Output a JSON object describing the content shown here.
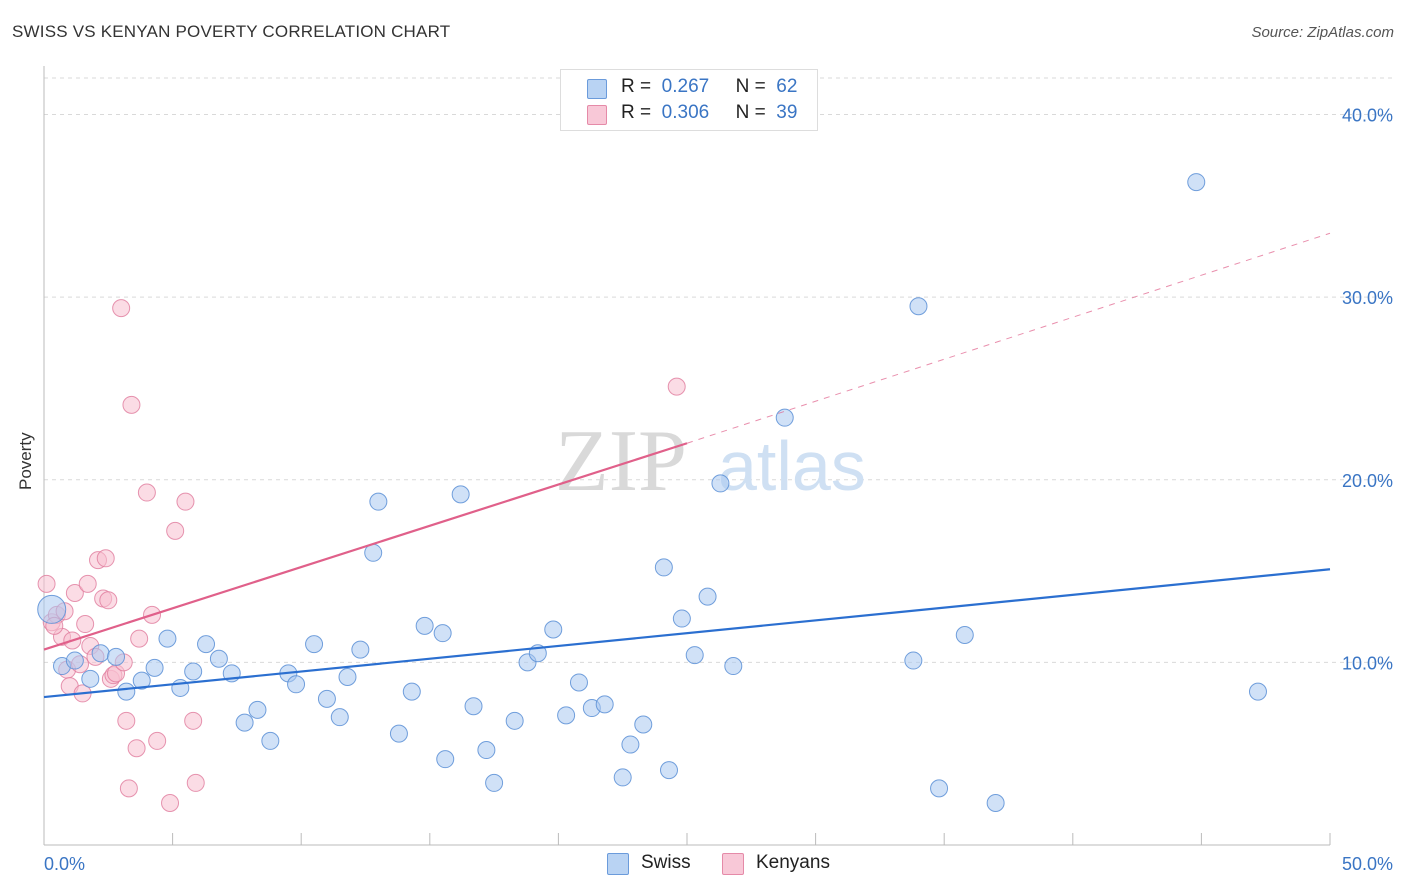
{
  "title": "SWISS VS KENYAN POVERTY CORRELATION CHART",
  "source": "Source: ZipAtlas.com",
  "legend_top": {
    "rows": [
      {
        "r_label": "R =",
        "r_value": "0.267",
        "n_label": "N =",
        "n_value": "62"
      },
      {
        "r_label": "R =",
        "r_value": "0.306",
        "n_label": "N =",
        "n_value": "39"
      }
    ]
  },
  "legend_bottom": {
    "swiss": "Swiss",
    "kenyans": "Kenyans"
  },
  "colors": {
    "swiss_fill": "#a9c8f0",
    "swiss_stroke": "#5b8fd6",
    "swiss_line": "#2b6fd0",
    "kenyan_fill": "#f7bfd0",
    "kenyan_stroke": "#e07a9c",
    "kenyan_line": "#e0608a",
    "tick_text": "#3a75c4",
    "grid": "#d9d9d9"
  },
  "chart_data": {
    "type": "scatter",
    "title": "SWISS VS KENYAN POVERTY CORRELATION CHART",
    "xlabel": "",
    "ylabel": "Poverty",
    "xlim": [
      0,
      50
    ],
    "ylim": [
      0,
      42
    ],
    "x_tick_labels": [
      "0.0%",
      "50.0%"
    ],
    "y_ticks": [
      10,
      20,
      30,
      40
    ],
    "y_tick_labels": [
      "10.0%",
      "20.0%",
      "30.0%",
      "40.0%"
    ],
    "grid": true,
    "legend_position": "top-center",
    "watermark": "ZIPatlas",
    "series": [
      {
        "name": "Swiss",
        "R": 0.267,
        "N": 62,
        "trend": {
          "x": [
            0,
            50
          ],
          "y": [
            8.1,
            15.1
          ],
          "style": "solid"
        },
        "points": [
          [
            0.3,
            12.9
          ],
          [
            0.7,
            9.8
          ],
          [
            1.2,
            10.1
          ],
          [
            1.8,
            9.1
          ],
          [
            2.2,
            10.5
          ],
          [
            2.8,
            10.3
          ],
          [
            3.2,
            8.4
          ],
          [
            3.8,
            9.0
          ],
          [
            4.3,
            9.7
          ],
          [
            4.8,
            11.3
          ],
          [
            5.3,
            8.6
          ],
          [
            5.8,
            9.5
          ],
          [
            6.3,
            11.0
          ],
          [
            6.8,
            10.2
          ],
          [
            7.3,
            9.4
          ],
          [
            7.8,
            6.7
          ],
          [
            8.3,
            7.4
          ],
          [
            8.8,
            5.7
          ],
          [
            9.5,
            9.4
          ],
          [
            9.8,
            8.8
          ],
          [
            10.5,
            11.0
          ],
          [
            11.0,
            8.0
          ],
          [
            11.5,
            7.0
          ],
          [
            11.8,
            9.2
          ],
          [
            12.3,
            10.7
          ],
          [
            12.8,
            16.0
          ],
          [
            13.0,
            18.8
          ],
          [
            13.8,
            6.1
          ],
          [
            14.3,
            8.4
          ],
          [
            14.8,
            12.0
          ],
          [
            15.5,
            11.6
          ],
          [
            15.6,
            4.7
          ],
          [
            16.2,
            19.2
          ],
          [
            16.7,
            7.6
          ],
          [
            17.2,
            5.2
          ],
          [
            17.5,
            3.4
          ],
          [
            18.3,
            6.8
          ],
          [
            18.8,
            10.0
          ],
          [
            19.2,
            10.5
          ],
          [
            19.8,
            11.8
          ],
          [
            20.3,
            7.1
          ],
          [
            20.8,
            8.9
          ],
          [
            21.3,
            7.5
          ],
          [
            21.8,
            7.7
          ],
          [
            22.5,
            3.7
          ],
          [
            22.8,
            5.5
          ],
          [
            23.3,
            6.6
          ],
          [
            24.1,
            15.2
          ],
          [
            24.3,
            4.1
          ],
          [
            24.8,
            12.4
          ],
          [
            25.3,
            10.4
          ],
          [
            25.8,
            13.6
          ],
          [
            26.3,
            19.8
          ],
          [
            26.8,
            9.8
          ],
          [
            28.8,
            23.4
          ],
          [
            33.8,
            10.1
          ],
          [
            34.0,
            29.5
          ],
          [
            34.8,
            3.1
          ],
          [
            35.8,
            11.5
          ],
          [
            37.0,
            2.3
          ],
          [
            44.8,
            36.3
          ],
          [
            47.2,
            8.4
          ]
        ]
      },
      {
        "name": "Kenyans",
        "R": 0.306,
        "N": 39,
        "trend": {
          "x": [
            0,
            25
          ],
          "y": [
            10.7,
            22.0
          ],
          "style": "solid"
        },
        "trend_extension": {
          "x": [
            25,
            50
          ],
          "y": [
            22.0,
            33.5
          ],
          "style": "dashed"
        },
        "points": [
          [
            0.1,
            14.3
          ],
          [
            0.3,
            12.2
          ],
          [
            0.5,
            12.6
          ],
          [
            0.7,
            11.4
          ],
          [
            0.8,
            12.8
          ],
          [
            0.9,
            9.6
          ],
          [
            1.0,
            8.7
          ],
          [
            1.2,
            13.8
          ],
          [
            1.4,
            9.9
          ],
          [
            1.5,
            8.3
          ],
          [
            1.6,
            12.1
          ],
          [
            1.7,
            14.3
          ],
          [
            1.8,
            10.9
          ],
          [
            2.0,
            10.3
          ],
          [
            2.1,
            15.6
          ],
          [
            2.3,
            13.5
          ],
          [
            2.4,
            15.7
          ],
          [
            2.5,
            13.4
          ],
          [
            2.6,
            9.1
          ],
          [
            2.7,
            9.3
          ],
          [
            2.8,
            9.4
          ],
          [
            3.0,
            29.4
          ],
          [
            3.1,
            10.0
          ],
          [
            3.2,
            6.8
          ],
          [
            3.3,
            3.1
          ],
          [
            3.4,
            24.1
          ],
          [
            3.6,
            5.3
          ],
          [
            3.7,
            11.3
          ],
          [
            4.0,
            19.3
          ],
          [
            4.2,
            12.6
          ],
          [
            4.4,
            5.7
          ],
          [
            4.9,
            2.3
          ],
          [
            5.1,
            17.2
          ],
          [
            5.5,
            18.8
          ],
          [
            5.8,
            6.8
          ],
          [
            5.9,
            3.4
          ],
          [
            24.6,
            25.1
          ],
          [
            0.4,
            12.0
          ],
          [
            1.1,
            11.2
          ]
        ]
      }
    ]
  }
}
